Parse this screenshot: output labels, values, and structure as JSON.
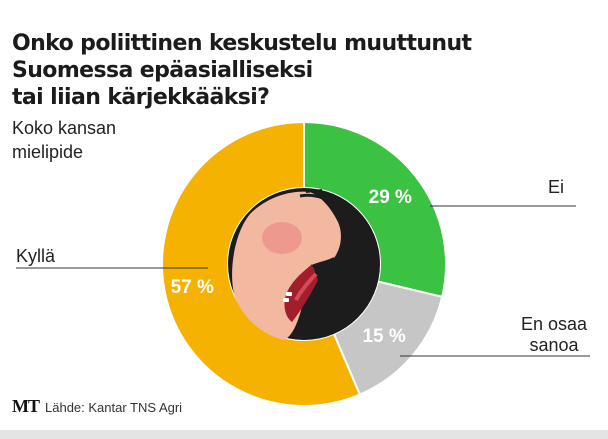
{
  "title_lines": [
    "Onko poliittinen keskustelu muuttunut",
    "Suomessa epäasialliseksi",
    "tai liian kärjekkääksi?"
  ],
  "subtitle_lines": [
    "Koko kansan",
    "mielipide"
  ],
  "source": {
    "logo": "MT",
    "text": "Lähde: Kantar TNS Agri"
  },
  "colors": {
    "Kyllä": "#f6b200",
    "Ei": "#3cc243",
    "En osaa sanoa": "#c6c6c6",
    "center": "#1c1c1c"
  },
  "chart_data": {
    "type": "pie",
    "style": "donut",
    "title": "Onko poliittinen keskustelu muuttunut Suomessa epäasialliseksi tai liian kärjekkääksi?",
    "subtitle": "Koko kansan mielipide",
    "unit": "%",
    "slices": [
      {
        "label": "Ei",
        "label_lines": [
          "Ei"
        ],
        "value": 29,
        "value_label": "29 %"
      },
      {
        "label": "En osaa sanoa",
        "label_lines": [
          "En osaa",
          "sanoa"
        ],
        "value": 15,
        "value_label": "15 %"
      },
      {
        "label": "Kyllä",
        "label_lines": [
          "Kyllä"
        ],
        "value": 57,
        "value_label": "57 %"
      }
    ],
    "legend": "none",
    "center_illustration": "face-shouting-icon"
  }
}
